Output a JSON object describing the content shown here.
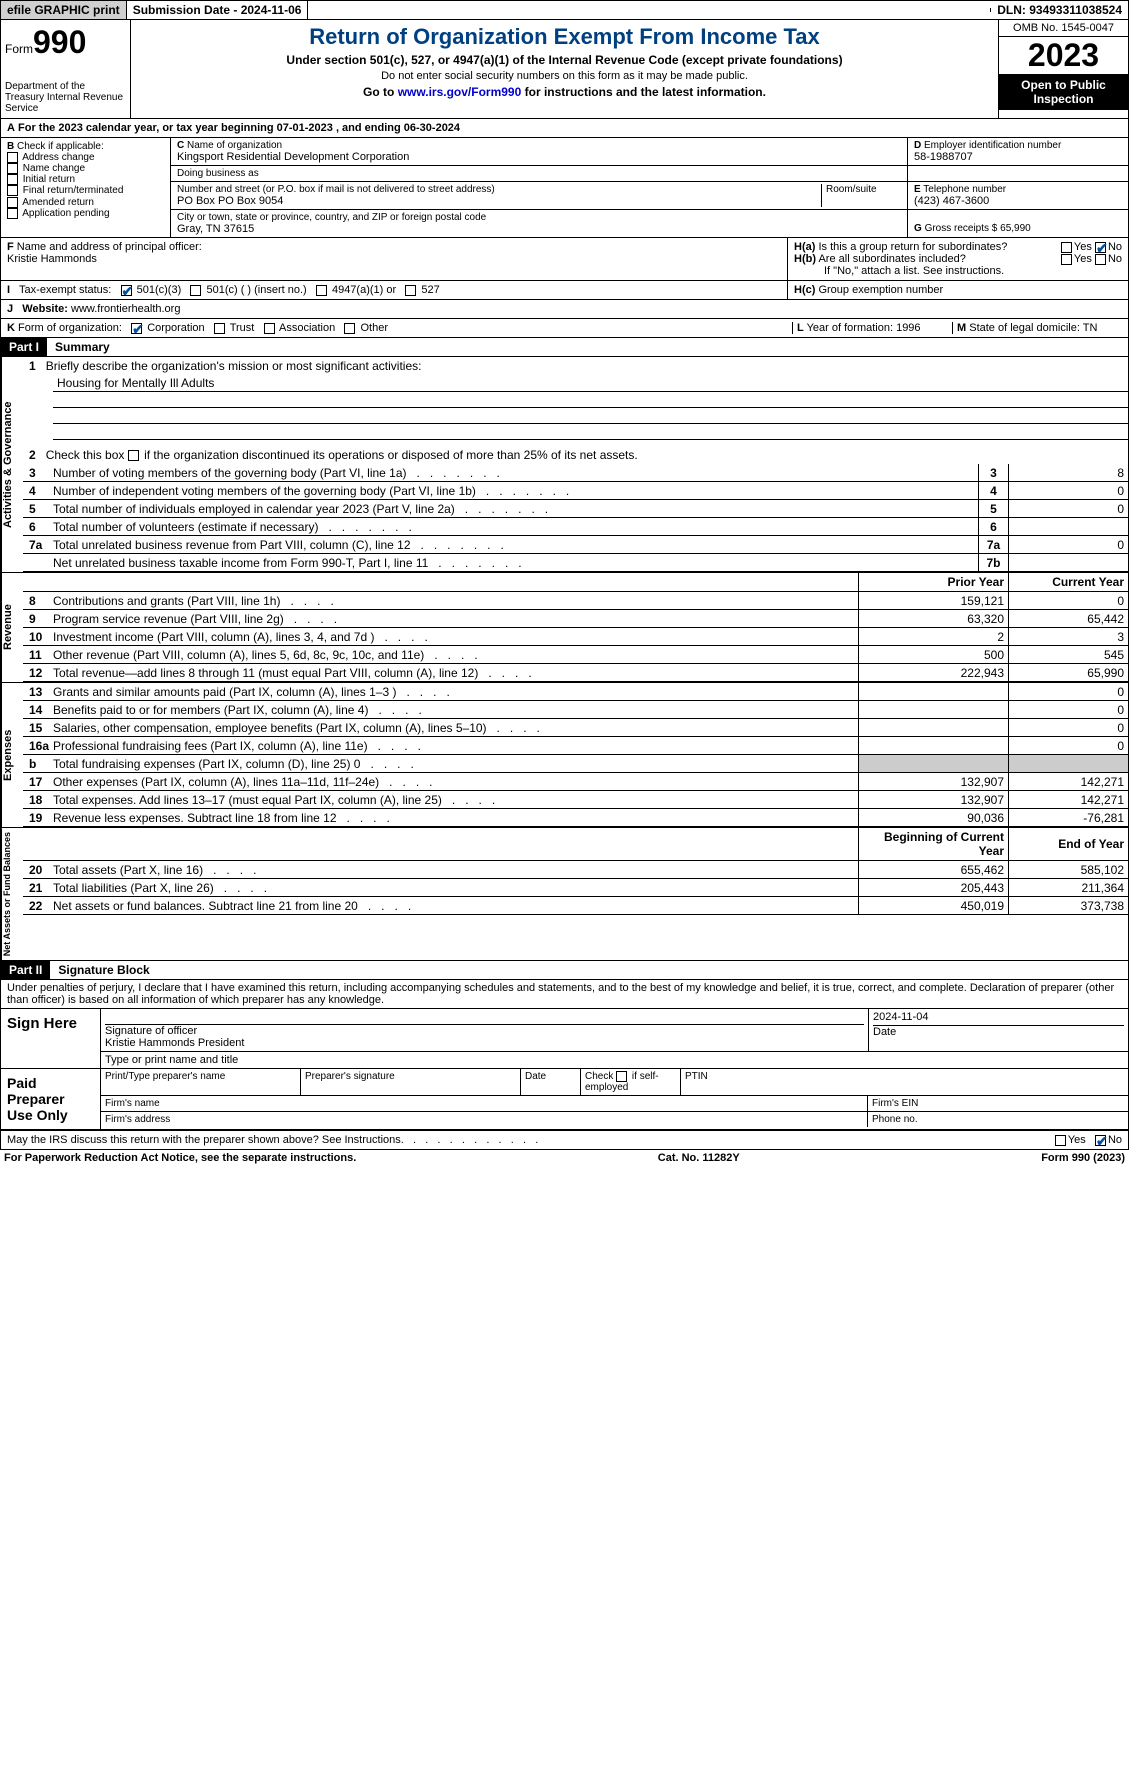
{
  "top": {
    "efile": "efile GRAPHIC print",
    "sub": "Submission Date - 2024-11-06",
    "dln": "DLN: 93493311038524"
  },
  "hdr": {
    "form": "Form",
    "num": "990",
    "dept": "Department of the Treasury Internal Revenue Service",
    "title": "Return of Organization Exempt From Income Tax",
    "sub1": "Under section 501(c), 527, or 4947(a)(1) of the Internal Revenue Code (except private foundations)",
    "sub2": "Do not enter social security numbers on this form as it may be made public.",
    "sub3": "Go to ",
    "link": "www.irs.gov/Form990",
    "sub3b": " for instructions and the latest information.",
    "omb": "OMB No. 1545-0047",
    "year": "2023",
    "insp": "Open to Public Inspection"
  },
  "a": {
    "text": "For the 2023 calendar year, or tax year beginning 07-01-2023    , and ending 06-30-2024"
  },
  "b": {
    "hdr": "Check if applicable:",
    "i": [
      "Address change",
      "Name change",
      "Initial return",
      "Final return/terminated",
      "Amended return",
      "Application pending"
    ]
  },
  "c": {
    "lbl": "Name of organization",
    "val": "Kingsport Residential Development Corporation",
    "dba": "Doing business as",
    "addr_lbl": "Number and street (or P.O. box if mail is not delivered to street address)",
    "addr": "PO Box PO Box 9054",
    "room": "Room/suite",
    "city_lbl": "City or town, state or province, country, and ZIP or foreign postal code",
    "city": "Gray, TN  37615"
  },
  "d": {
    "lbl": "Employer identification number",
    "val": "58-1988707"
  },
  "e": {
    "lbl": "Telephone number",
    "val": "(423) 467-3600"
  },
  "g": {
    "lbl": "Gross receipts $ 65,990"
  },
  "f": {
    "lbl": "Name and address of principal officer:",
    "val": "Kristie Hammonds"
  },
  "h": {
    "a": "Is this a group return for subordinates?",
    "b": "Are all subordinates included?",
    "note": "If \"No,\" attach a list. See instructions.",
    "c": "Group exemption number"
  },
  "i": {
    "lbl": "Tax-exempt status:",
    "o1": "501(c)(3)",
    "o2": "501(c) (  ) (insert no.)",
    "o3": "4947(a)(1) or",
    "o4": "527"
  },
  "j": {
    "lbl": "Website:",
    "val": "www.frontierhealth.org"
  },
  "k": {
    "lbl": "Form of organization:",
    "o": [
      "Corporation",
      "Trust",
      "Association",
      "Other"
    ]
  },
  "l": {
    "lbl": "Year of formation: 1996"
  },
  "m": {
    "lbl": "State of legal domicile: TN"
  },
  "p1": {
    "hdr": "Part I",
    "title": "Summary",
    "l1": "Briefly describe the organization's mission or most significant activities:",
    "mission": "Housing for Mentally Ill Adults",
    "l2": "Check this box",
    "l2b": "if the organization discontinued its operations or disposed of more than 25% of its net assets.",
    "ag": [
      {
        "n": "3",
        "d": "Number of voting members of the governing body (Part VI, line 1a)",
        "b": "3",
        "v": "8"
      },
      {
        "n": "4",
        "d": "Number of independent voting members of the governing body (Part VI, line 1b)",
        "b": "4",
        "v": "0"
      },
      {
        "n": "5",
        "d": "Total number of individuals employed in calendar year 2023 (Part V, line 2a)",
        "b": "5",
        "v": "0"
      },
      {
        "n": "6",
        "d": "Total number of volunteers (estimate if necessary)",
        "b": "6",
        "v": ""
      },
      {
        "n": "7a",
        "d": "Total unrelated business revenue from Part VIII, column (C), line 12",
        "b": "7a",
        "v": "0"
      },
      {
        "n": "",
        "d": "Net unrelated business taxable income from Form 990-T, Part I, line 11",
        "b": "7b",
        "v": ""
      }
    ],
    "col_prior": "Prior Year",
    "col_curr": "Current Year",
    "rev": [
      {
        "n": "8",
        "d": "Contributions and grants (Part VIII, line 1h)",
        "p": "159,121",
        "c": "0"
      },
      {
        "n": "9",
        "d": "Program service revenue (Part VIII, line 2g)",
        "p": "63,320",
        "c": "65,442"
      },
      {
        "n": "10",
        "d": "Investment income (Part VIII, column (A), lines 3, 4, and 7d )",
        "p": "2",
        "c": "3"
      },
      {
        "n": "11",
        "d": "Other revenue (Part VIII, column (A), lines 5, 6d, 8c, 9c, 10c, and 11e)",
        "p": "500",
        "c": "545"
      },
      {
        "n": "12",
        "d": "Total revenue—add lines 8 through 11 (must equal Part VIII, column (A), line 12)",
        "p": "222,943",
        "c": "65,990"
      }
    ],
    "exp": [
      {
        "n": "13",
        "d": "Grants and similar amounts paid (Part IX, column (A), lines 1–3 )",
        "p": "",
        "c": "0"
      },
      {
        "n": "14",
        "d": "Benefits paid to or for members (Part IX, column (A), line 4)",
        "p": "",
        "c": "0"
      },
      {
        "n": "15",
        "d": "Salaries, other compensation, employee benefits (Part IX, column (A), lines 5–10)",
        "p": "",
        "c": "0"
      },
      {
        "n": "16a",
        "d": "Professional fundraising fees (Part IX, column (A), line 11e)",
        "p": "",
        "c": "0"
      },
      {
        "n": "b",
        "d": "Total fundraising expenses (Part IX, column (D), line 25) 0",
        "p": "shade",
        "c": "shade"
      },
      {
        "n": "17",
        "d": "Other expenses (Part IX, column (A), lines 11a–11d, 11f–24e)",
        "p": "132,907",
        "c": "142,271"
      },
      {
        "n": "18",
        "d": "Total expenses. Add lines 13–17 (must equal Part IX, column (A), line 25)",
        "p": "132,907",
        "c": "142,271"
      },
      {
        "n": "19",
        "d": "Revenue less expenses. Subtract line 18 from line 12",
        "p": "90,036",
        "c": "-76,281"
      }
    ],
    "col_beg": "Beginning of Current Year",
    "col_end": "End of Year",
    "na": [
      {
        "n": "20",
        "d": "Total assets (Part X, line 16)",
        "p": "655,462",
        "c": "585,102"
      },
      {
        "n": "21",
        "d": "Total liabilities (Part X, line 26)",
        "p": "205,443",
        "c": "211,364"
      },
      {
        "n": "22",
        "d": "Net assets or fund balances. Subtract line 21 from line 20",
        "p": "450,019",
        "c": "373,738"
      }
    ]
  },
  "p2": {
    "hdr": "Part II",
    "title": "Signature Block",
    "decl": "Under penalties of perjury, I declare that I have examined this return, including accompanying schedules and statements, and to the best of my knowledge and belief, it is true, correct, and complete. Declaration of preparer (other than officer) is based on all information of which preparer has any knowledge.",
    "sign": "Sign Here",
    "sig_lbl": "Signature of officer",
    "sig_name": "Kristie Hammonds  President",
    "type_lbl": "Type or print name and title",
    "date_lbl": "Date",
    "date": "2024-11-04",
    "paid": "Paid Preparer Use Only",
    "pp": {
      "name": "Print/Type preparer's name",
      "sig": "Preparer's signature",
      "date": "Date",
      "se": "Check",
      "se2": "if self-employed",
      "ptin": "PTIN",
      "fname": "Firm's name",
      "fein": "Firm's EIN",
      "faddr": "Firm's address",
      "fphone": "Phone no."
    },
    "discuss": "May the IRS discuss this return with the preparer shown above? See Instructions."
  },
  "foot": {
    "l": "For Paperwork Reduction Act Notice, see the separate instructions.",
    "c": "Cat. No. 11282Y",
    "r": "Form 990 (2023)"
  }
}
